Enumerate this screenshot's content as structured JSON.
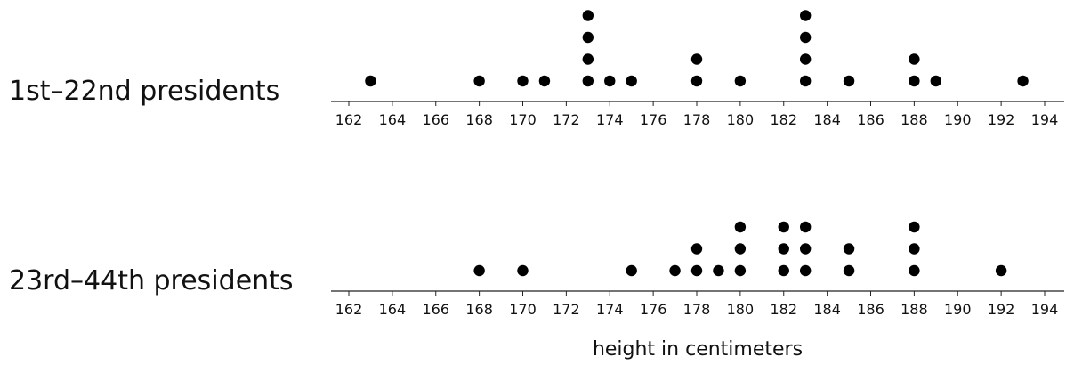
{
  "chart_data": {
    "type": "scatter",
    "subtype": "dot-plot",
    "xlabel": "height in centimeters",
    "xlim": [
      162,
      194
    ],
    "xticks": [
      162,
      164,
      166,
      168,
      170,
      172,
      174,
      176,
      178,
      180,
      182,
      184,
      186,
      188,
      190,
      192,
      194
    ],
    "grid": false,
    "panels": [
      {
        "name": "1st–22nd presidents",
        "values": [
          163,
          168,
          170,
          171,
          173,
          173,
          173,
          173,
          174,
          175,
          178,
          178,
          180,
          183,
          183,
          183,
          183,
          185,
          188,
          188,
          189,
          193
        ]
      },
      {
        "name": "23rd–44th presidents",
        "values": [
          168,
          170,
          175,
          177,
          178,
          178,
          179,
          180,
          180,
          180,
          182,
          182,
          182,
          183,
          183,
          183,
          185,
          185,
          188,
          188,
          188,
          192
        ]
      }
    ]
  }
}
